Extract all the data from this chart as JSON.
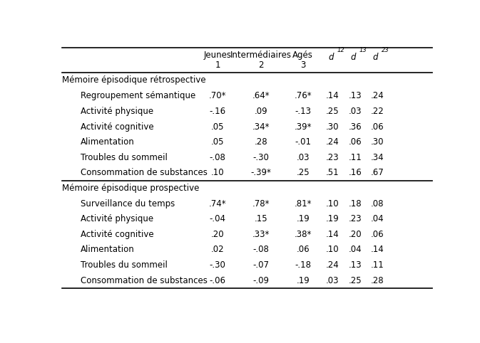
{
  "col_headers_line1": [
    "Jeunes",
    "Intermédiaires",
    "Agés",
    "d",
    "d",
    "d"
  ],
  "col_headers_line2": [
    "1",
    "2",
    "3",
    "",
    "",
    ""
  ],
  "col_superscripts": [
    "",
    "",
    "",
    "12",
    "13",
    "23"
  ],
  "section1_header": "Mémoire épisodique rétrospective",
  "section1_rows": [
    [
      "Regroupement sémantique",
      ".70*",
      ".64*",
      ".76*",
      ".14",
      ".13",
      ".24"
    ],
    [
      "Activité physique",
      "-.16",
      ".09",
      "-.13",
      ".25",
      ".03",
      ".22"
    ],
    [
      "Activité cognitive",
      ".05",
      ".34*",
      ".39*",
      ".30",
      ".36",
      ".06"
    ],
    [
      "Alimentation",
      ".05",
      ".28",
      "-.01",
      ".24",
      ".06",
      ".30"
    ],
    [
      "Troubles du sommeil",
      "-.08",
      "-.30",
      ".03",
      ".23",
      ".11",
      ".34"
    ],
    [
      "Consommation de substances",
      ".10",
      "-.39*",
      ".25",
      ".51",
      ".16",
      ".67"
    ]
  ],
  "section2_header": "Mémoire épisodique prospective",
  "section2_rows": [
    [
      "Surveillance du temps",
      ".74*",
      ".78*",
      ".81*",
      ".10",
      ".18",
      ".08"
    ],
    [
      "Activité physique",
      "-.04",
      ".15",
      ".19",
      ".19",
      ".23",
      ".04"
    ],
    [
      "Activité cognitive",
      ".20",
      ".33*",
      ".38*",
      ".14",
      ".20",
      ".06"
    ],
    [
      "Alimentation",
      ".02",
      "-.08",
      ".06",
      ".10",
      ".04",
      ".14"
    ],
    [
      "Troubles du sommeil",
      "-.30",
      "-.07",
      "-.18",
      ".24",
      ".13",
      ".11"
    ],
    [
      "Consommation de substances",
      "-.06",
      "-.09",
      ".19",
      ".03",
      ".25",
      ".28"
    ]
  ],
  "bg_color": "#ffffff",
  "text_color": "#000000",
  "font_size": 8.5,
  "indent": 0.05
}
